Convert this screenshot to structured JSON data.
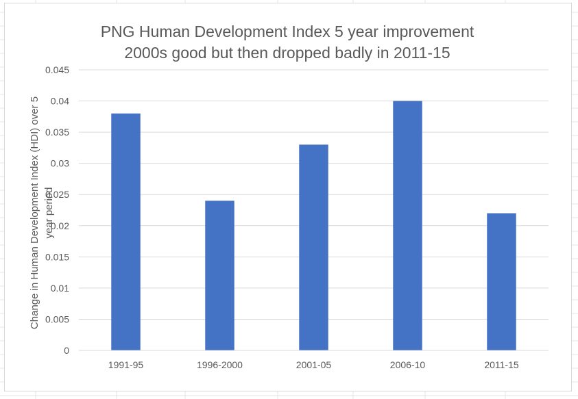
{
  "chart_data": {
    "type": "bar",
    "title_lines": [
      "PNG Human Development Index 5 year  improvement",
      "2000s  good but then dropped badly in 2011-15"
    ],
    "xlabel": "",
    "ylabel_lines": [
      "Change in Human Development Index (HDI) over 5",
      "year period"
    ],
    "categories": [
      "1991-95",
      "1996-2000",
      "2001-05",
      "2006-10",
      "2011-15"
    ],
    "values": [
      0.038,
      0.024,
      0.033,
      0.04,
      0.022
    ],
    "ylim": [
      0,
      0.045
    ],
    "yticks": [
      "0",
      "0.005",
      "0.01",
      "0.015",
      "0.02",
      "0.025",
      "0.03",
      "0.035",
      "0.04",
      "0.045"
    ],
    "grid": true,
    "legend": "none",
    "bar_color": "#4472c4",
    "grid_color": "#d9d9d9"
  }
}
